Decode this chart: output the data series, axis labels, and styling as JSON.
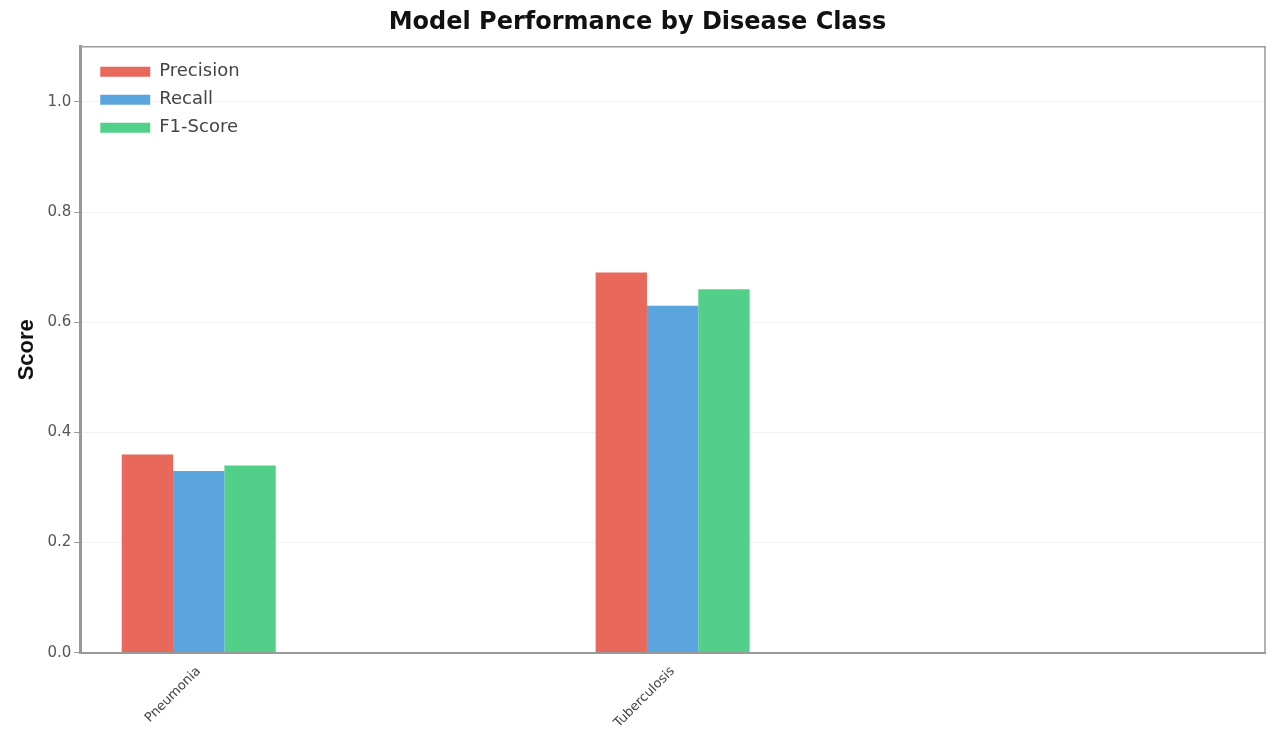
{
  "chart_data": {
    "type": "bar",
    "title": "Model Performance by Disease Class",
    "ylabel": "Score",
    "categories": [
      "Pneumonia",
      null,
      "Tuberculosis",
      null,
      null
    ],
    "series": [
      {
        "name": "Precision",
        "color": "#e8685c",
        "values": [
          0.36,
          null,
          0.69,
          null,
          null
        ]
      },
      {
        "name": "Recall",
        "color": "#5aa5dd",
        "values": [
          0.33,
          null,
          0.63,
          null,
          null
        ]
      },
      {
        "name": "F1-Score",
        "color": "#52d08a",
        "values": [
          0.34,
          null,
          0.66,
          null,
          null
        ]
      }
    ],
    "ylim": [
      0,
      1.1
    ],
    "yticks": [
      {
        "value": 0,
        "label": "0.0"
      },
      {
        "value": 0.2,
        "label": "0.2"
      },
      {
        "value": 0.4,
        "label": "0.4"
      },
      {
        "value": 0.6,
        "label": "0.6"
      },
      {
        "value": 0.8,
        "label": "0.8"
      },
      {
        "value": 1.0,
        "label": "1.0"
      }
    ],
    "grid": "y",
    "legend": "top left"
  }
}
